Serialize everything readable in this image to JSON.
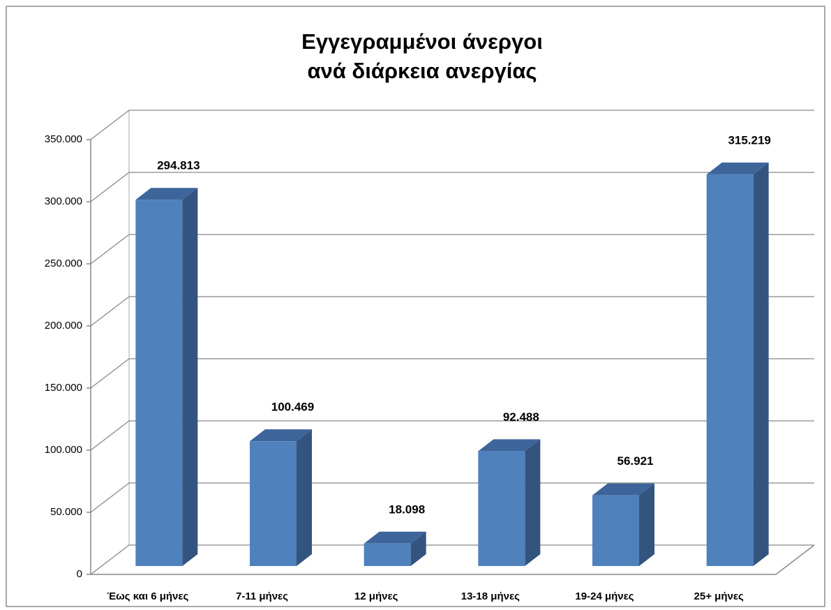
{
  "chart_data": {
    "type": "bar",
    "title": [
      "Εγγεγραμμένοι άνεργοι",
      "ανά διάρκεια ανεργίας"
    ],
    "categories": [
      "Έως και 6 μήνες",
      "7-11 μήνες",
      "12 μήνες",
      "13-18 μήνες",
      "19-24 μήνες",
      "25+ μήνες"
    ],
    "values": [
      294813,
      100469,
      18098,
      92488,
      56921,
      315219
    ],
    "value_labels": [
      "294.813",
      "100.469",
      "18.098",
      "92.488",
      "56.921",
      "315.219"
    ],
    "color": "#4f81bd",
    "ylim": [
      0,
      350000
    ],
    "yticks": [
      0,
      {
        "value": 50000,
        "label": "50.000"
      },
      {
        "value": 100000,
        "label": "100.000"
      },
      {
        "value": 150000,
        "label": "150.000"
      },
      {
        "value": 200000,
        "label": "200.000"
      },
      {
        "value": 250000,
        "label": "250.000"
      },
      {
        "value": 300000,
        "label": "300.000"
      },
      {
        "value": 350000,
        "label": "350.000"
      }
    ],
    "grid": true
  }
}
